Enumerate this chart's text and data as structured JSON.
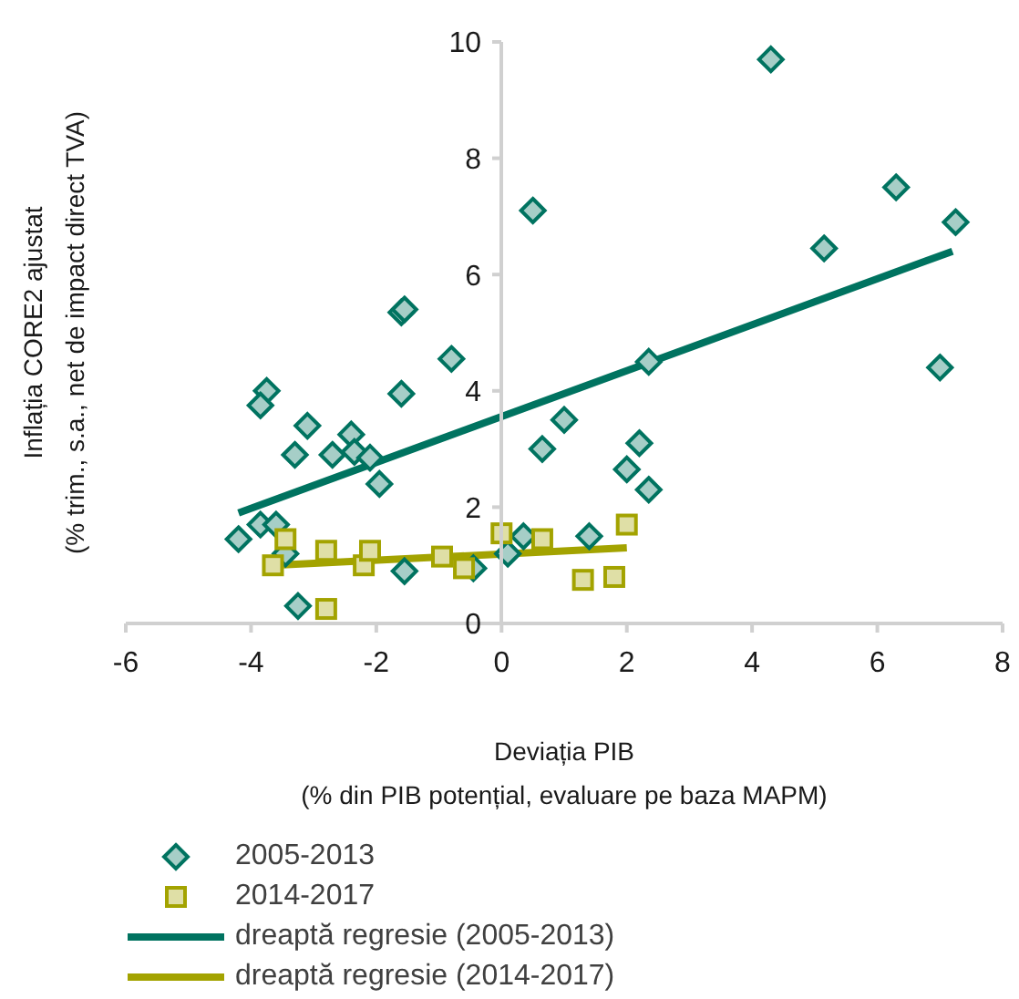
{
  "chart_data": {
    "type": "scatter",
    "xlabel": "Deviația PIB\n(% din PIB potențial, evaluare pe baza MAPM)",
    "ylabel": "Inflația CORE2 ajustat\n(% trim., s.a., net de impact direct TVA)",
    "xlim": [
      -6,
      8
    ],
    "xticks": [
      -6,
      -4,
      -2,
      0,
      2,
      4,
      6,
      8
    ],
    "ylim": [
      0,
      10
    ],
    "yticks": [
      0,
      2,
      4,
      6,
      8,
      10
    ],
    "legend": "bottom left",
    "series": [
      {
        "name": "2005-2013",
        "marker": "diamond",
        "color": "#007360",
        "x": [
          -4.2,
          -3.85,
          -3.6,
          -3.45,
          -3.25,
          -3.75,
          -3.85,
          -3.3,
          -3.1,
          -2.7,
          -2.4,
          -2.35,
          -2.1,
          -1.95,
          -1.6,
          -1.6,
          -1.55,
          -0.8,
          -1.55,
          -0.45,
          0.1,
          0.35,
          0.5,
          0.65,
          1.0,
          1.4,
          2.0,
          2.2,
          2.35,
          2.35,
          4.3,
          5.15,
          6.3,
          7.25,
          7.0
        ],
        "values": [
          1.45,
          1.7,
          1.7,
          1.2,
          0.3,
          4.0,
          3.75,
          2.9,
          3.4,
          2.9,
          3.25,
          2.95,
          2.85,
          2.4,
          3.95,
          5.35,
          5.4,
          4.55,
          0.9,
          0.95,
          1.2,
          1.5,
          7.1,
          3.0,
          3.5,
          1.5,
          2.65,
          3.1,
          2.3,
          4.5,
          9.7,
          6.45,
          7.5,
          6.9,
          4.4
        ]
      },
      {
        "name": "2014-2017",
        "marker": "square",
        "color": "#a3a300",
        "x": [
          -3.65,
          -3.45,
          -2.8,
          -2.8,
          -2.2,
          -2.1,
          -0.95,
          -0.6,
          0.0,
          0.65,
          1.3,
          1.8,
          2.0
        ],
        "values": [
          1.0,
          1.45,
          1.25,
          0.25,
          1.0,
          1.25,
          1.15,
          0.95,
          1.55,
          1.45,
          0.75,
          0.8,
          1.7
        ]
      },
      {
        "name": "dreaptă regresie (2005-2013)",
        "type": "line",
        "color": "#007360",
        "x": [
          -4.2,
          7.2
        ],
        "values": [
          1.9,
          6.4
        ]
      },
      {
        "name": "dreaptă regresie (2014-2017)",
        "type": "line",
        "color": "#a3a300",
        "x": [
          -3.65,
          2.0
        ],
        "values": [
          1.0,
          1.3
        ]
      }
    ]
  }
}
